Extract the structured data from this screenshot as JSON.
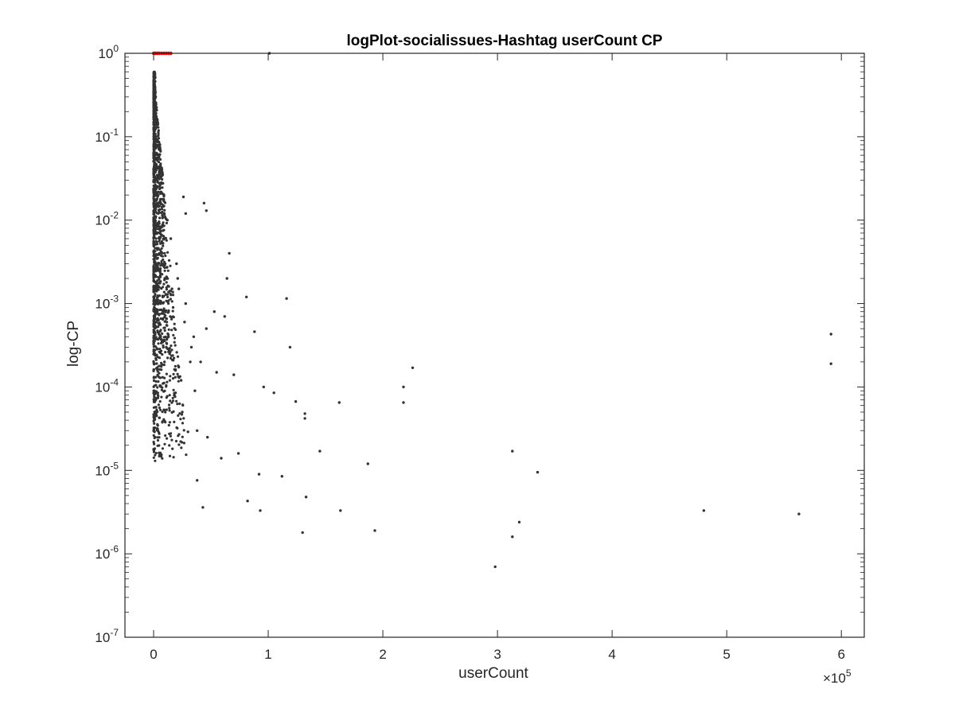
{
  "chart_data": {
    "type": "scatter",
    "title": "logPlot-socialissues-Hashtag userCount CP",
    "xlabel": "userCount",
    "ylabel": "log-CP",
    "x_exponent_label": "×10",
    "x_exponent": "5",
    "xlim": [
      -25000,
      620000
    ],
    "ylim": [
      1e-07,
      1
    ],
    "yscale": "log",
    "x_ticks": [
      0,
      100000,
      200000,
      300000,
      400000,
      500000,
      600000
    ],
    "x_tick_labels": [
      "0",
      "1",
      "2",
      "3",
      "4",
      "5",
      "6"
    ],
    "y_ticks": [
      1e-07,
      1e-06,
      1e-05,
      0.0001,
      0.001,
      0.01,
      0.1,
      1
    ],
    "y_tick_labels": [
      {
        "base": "10",
        "exp": "-7"
      },
      {
        "base": "10",
        "exp": "-6"
      },
      {
        "base": "10",
        "exp": "-5"
      },
      {
        "base": "10",
        "exp": "-4"
      },
      {
        "base": "10",
        "exp": "-3"
      },
      {
        "base": "10",
        "exp": "-2"
      },
      {
        "base": "10",
        "exp": "-1"
      },
      {
        "base": "10",
        "exp": "0"
      }
    ],
    "grid": false,
    "legend": "none",
    "colors": {
      "points": "#333333",
      "highlight": "#ff0000",
      "axes": "#262626"
    },
    "highlight_series": {
      "x": [
        0,
        800,
        2000,
        3500,
        5000,
        7000,
        9000,
        11000,
        13000,
        15000
      ],
      "y": [
        1,
        1,
        1,
        1,
        1,
        1,
        1,
        1,
        1,
        1
      ]
    },
    "dense_band": {
      "note": "many points along the y-axis",
      "x_range": [
        0,
        30000
      ],
      "y_range": [
        1.3e-05,
        0.6
      ]
    },
    "series": [
      {
        "x": [
          101000,
          600,
          1800,
          2300,
          26000,
          44000,
          46000,
          28000,
          66000,
          64000,
          81000,
          116000,
          88000,
          119000,
          226000,
          218000,
          218000,
          591000,
          591000,
          162000,
          132000,
          132000,
          145000,
          187000,
          313000,
          335000,
          92000,
          112000,
          82000,
          93000,
          133000,
          163000,
          193000,
          319000,
          313000,
          298000,
          130000,
          480000,
          563000,
          43000,
          38000,
          59000,
          74000,
          96000,
          105000,
          124000,
          62000,
          53000,
          46000,
          33000,
          15000,
          20000,
          12000,
          9000,
          22000,
          28000,
          35000,
          41000,
          55000,
          70000,
          38000,
          47000,
          30000,
          25000,
          18000,
          11000,
          7000,
          5000,
          14000,
          24000,
          32000,
          17000,
          27000,
          21000,
          36000,
          8000,
          13000,
          6000,
          3000,
          9500,
          16000
        ],
        "y": [
          1,
          0.5,
          0.3,
          0.13,
          0.019,
          0.016,
          0.013,
          0.012,
          0.004,
          0.002,
          0.0012,
          0.00115,
          0.00046,
          0.0003,
          0.00017,
          0.0001,
          6.5e-05,
          0.00043,
          0.00019,
          6.5e-05,
          4.8e-05,
          4.2e-05,
          1.7e-05,
          1.2e-05,
          1.7e-05,
          9.5e-06,
          9e-06,
          8.5e-06,
          4.3e-06,
          3.3e-06,
          4.8e-06,
          3.3e-06,
          1.9e-06,
          2.4e-06,
          1.6e-06,
          7e-07,
          1.8e-06,
          3.3e-06,
          3e-06,
          3.6e-06,
          7.6e-06,
          1.4e-05,
          1.6e-05,
          0.0001,
          8.5e-05,
          6.7e-05,
          0.0007,
          0.0008,
          0.0005,
          0.0003,
          0.006,
          0.003,
          0.01,
          0.02,
          0.0015,
          0.001,
          0.0004,
          0.0002,
          0.00015,
          0.00014,
          3e-05,
          2.5e-05,
          2.9e-05,
          5e-05,
          8e-05,
          0.0003,
          0.003,
          0.06,
          0.00025,
          0.00012,
          0.0002,
          0.0009,
          0.0006,
          0.002,
          9e-05,
          0.0012,
          0.0004,
          0.008,
          0.03,
          0.0002,
          0.0015
        ]
      }
    ]
  }
}
